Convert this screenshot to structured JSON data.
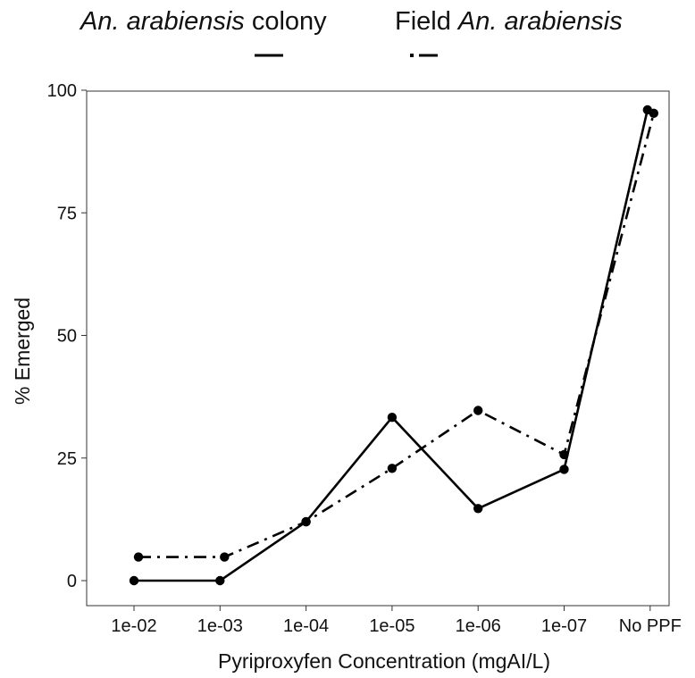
{
  "chart_data": {
    "type": "line",
    "xlabel": "Pyriproxyfen Concentration (mgAI/L)",
    "ylabel": "% Emerged",
    "categories": [
      "1e-02",
      "1e-03",
      "1e-04",
      "1e-05",
      "1e-06",
      "1e-07",
      "No PPF"
    ],
    "ylim": [
      0,
      100
    ],
    "yticks": [
      0,
      25,
      50,
      75,
      100
    ],
    "grid": false,
    "legend_position": "top",
    "series": [
      {
        "name_parts": [
          {
            "text": "An. arabiensis",
            "italic": true
          },
          {
            "text": " colony",
            "italic": false
          }
        ],
        "line_style": "solid",
        "values": [
          0,
          0,
          12,
          33.3,
          14.7,
          22.7,
          96
        ]
      },
      {
        "name_parts": [
          {
            "text": "Field ",
            "italic": false
          },
          {
            "text": "An. arabiensis",
            "italic": true
          }
        ],
        "line_style": "dashdot",
        "values": [
          4.8,
          4.8,
          12,
          22.9,
          34.7,
          25.7,
          95.3
        ]
      }
    ]
  }
}
